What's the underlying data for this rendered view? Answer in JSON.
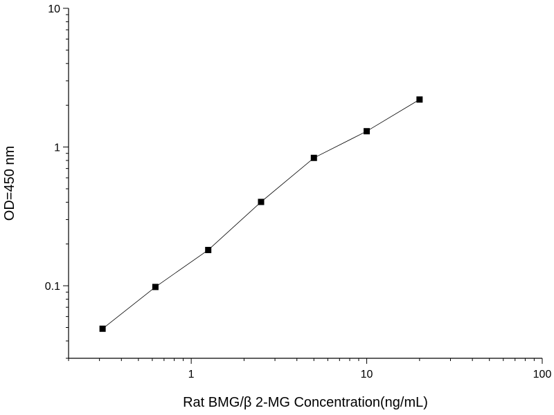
{
  "chart_data": {
    "type": "line",
    "title": "",
    "xlabel": "Rat BMG/β 2-MG  Concentration(ng/mL)",
    "ylabel": "OD=450 nm",
    "xscale": "log",
    "yscale": "log",
    "xlim": [
      0.2,
      100
    ],
    "ylim": [
      0.03,
      10
    ],
    "grid": false,
    "legend": "none",
    "x_ticks": [
      {
        "value": 1,
        "label": "1"
      },
      {
        "value": 10,
        "label": "10"
      },
      {
        "value": 100,
        "label": "100"
      }
    ],
    "y_ticks": [
      {
        "value": 0.1,
        "label": "0.1"
      },
      {
        "value": 1,
        "label": "1"
      },
      {
        "value": 10,
        "label": "10"
      }
    ],
    "marker": "square",
    "colors": {
      "line": "#000000",
      "marker": "#000000",
      "axis": "#000000"
    },
    "series": [
      {
        "x": [
          0.3125,
          0.625,
          1.25,
          2.5,
          5,
          10,
          20
        ],
        "y": [
          0.049,
          0.098,
          0.181,
          0.402,
          0.835,
          1.3,
          2.2
        ]
      }
    ]
  }
}
